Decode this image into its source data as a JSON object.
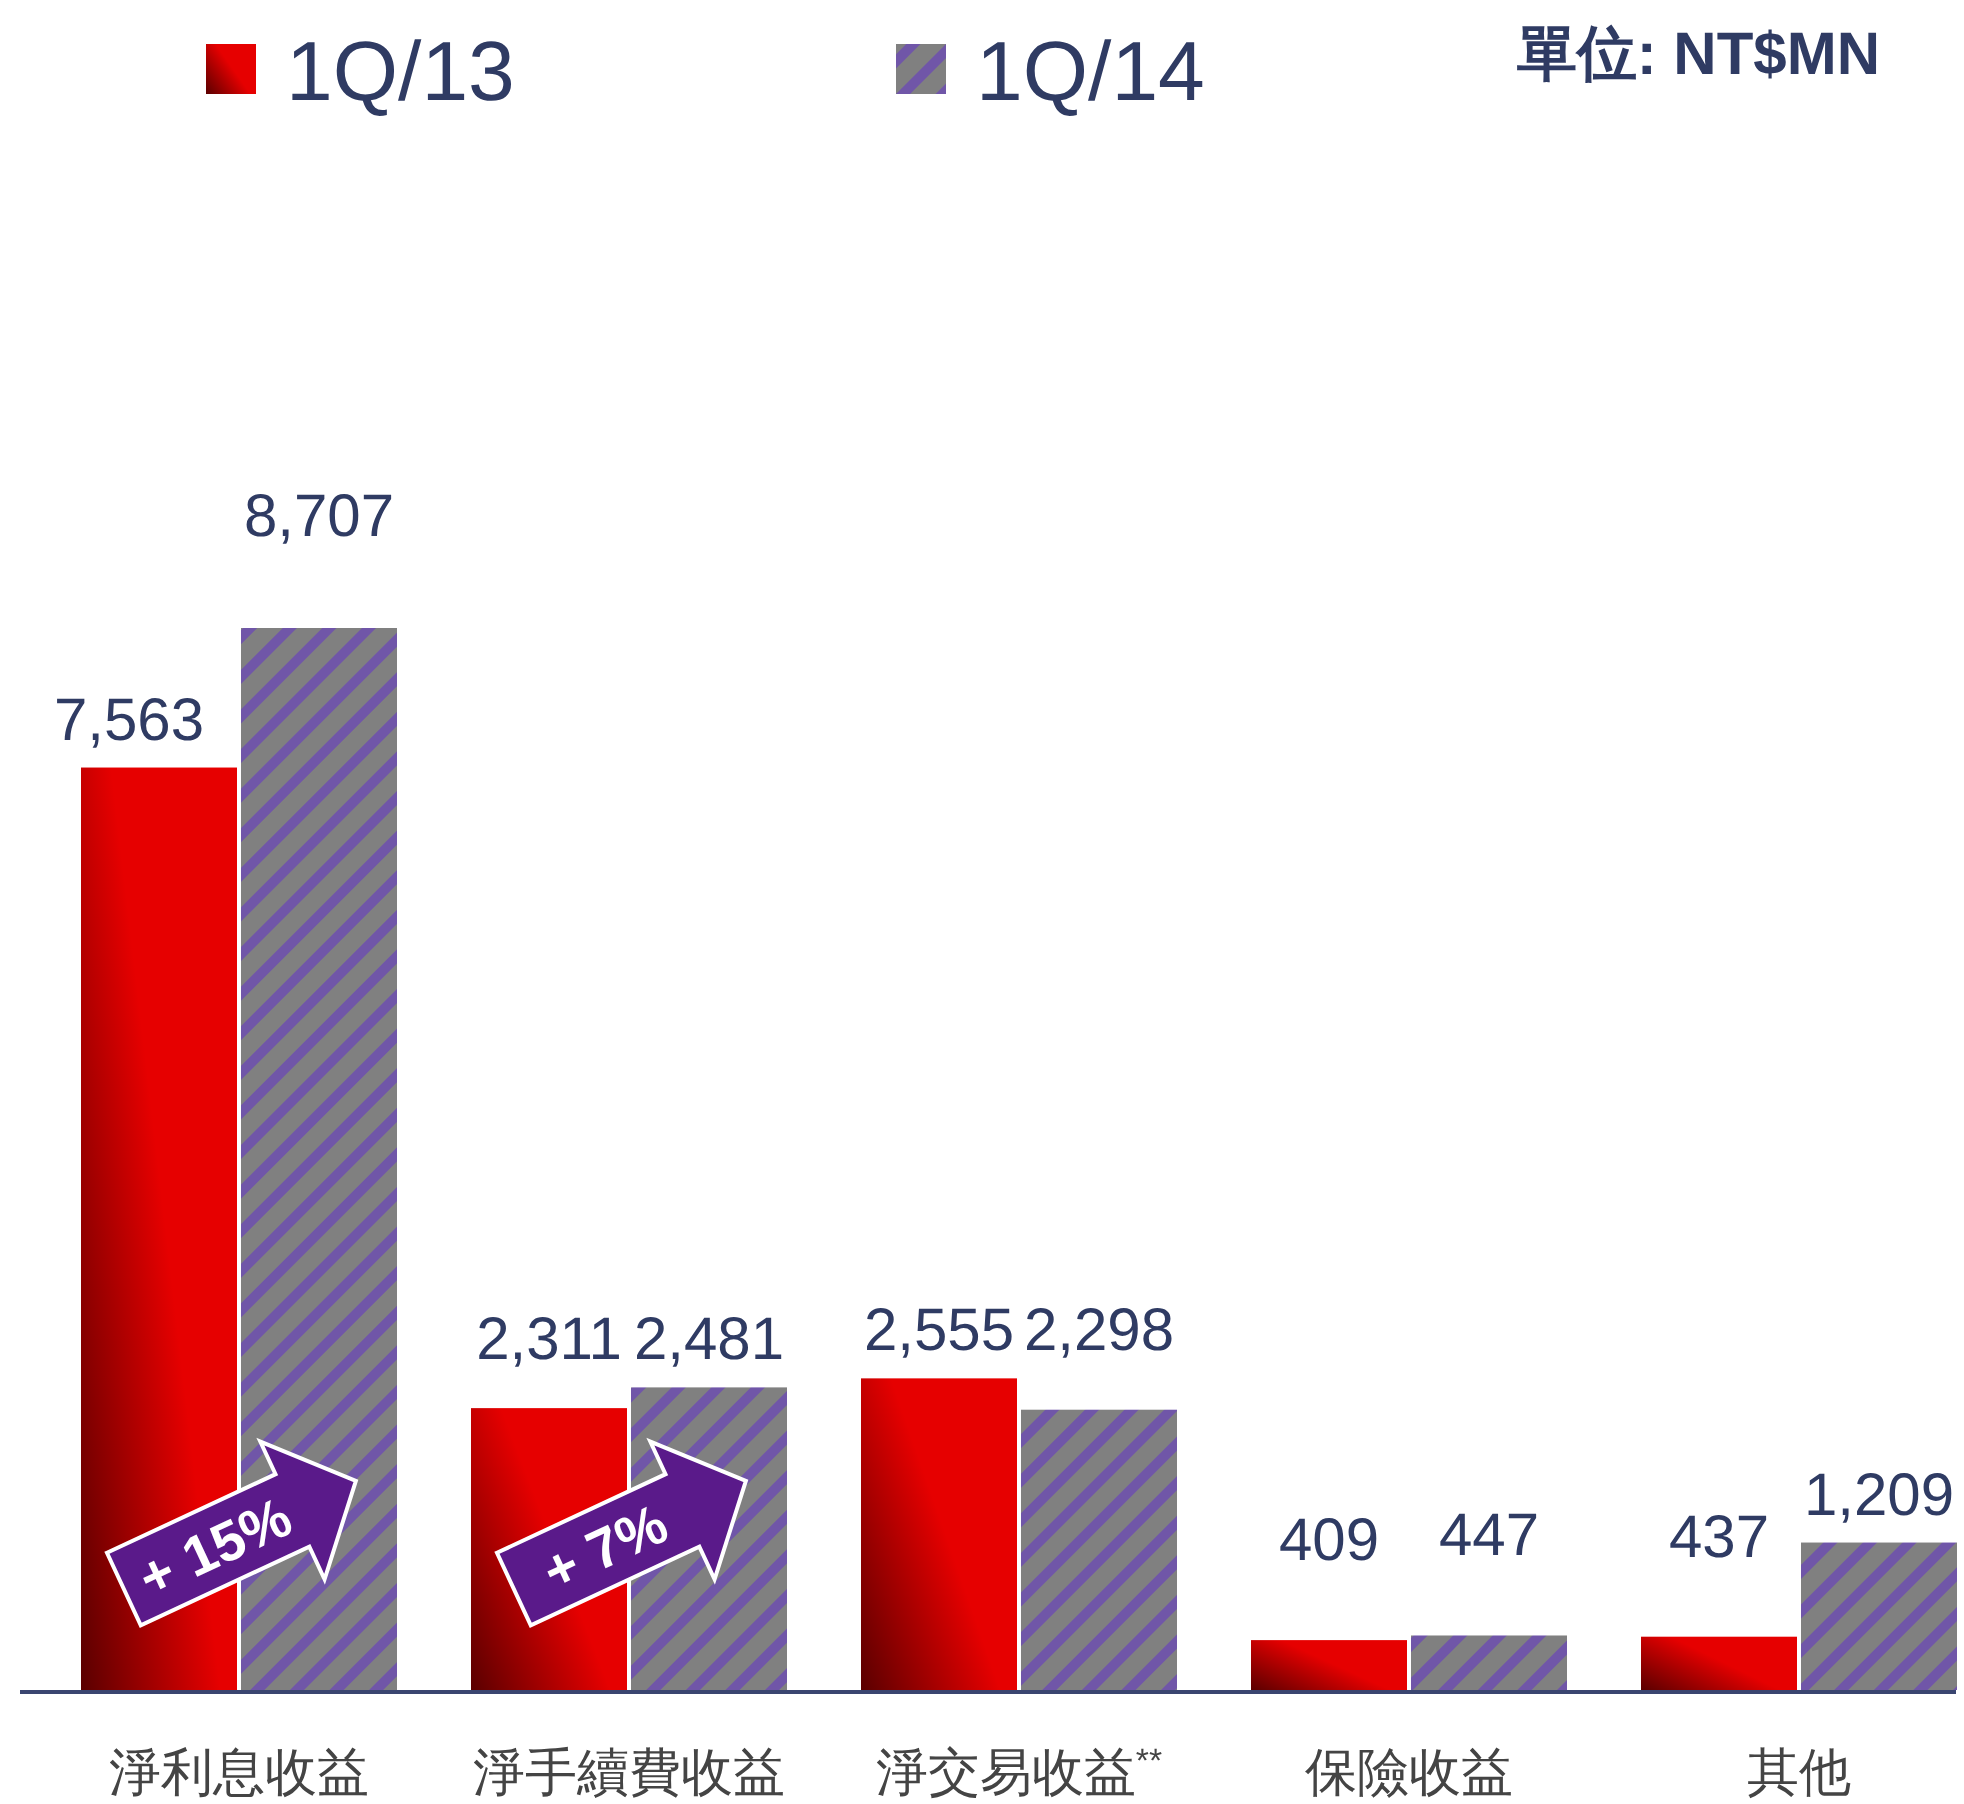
{
  "chart_data": {
    "type": "bar",
    "subtitle": "單位: NT$MN",
    "categories": [
      "淨利息收益",
      "淨手續費收益",
      "淨交易收益$^{**}$",
      "保險收益",
      "其他"
    ],
    "series": [
      {
        "name": "1Q/13",
        "color": "#e60000",
        "values": [
          7563,
          2311,
          2555,
          409,
          437
        ],
        "value_labels": [
          "7,563",
          "2,311",
          "2,555",
          "409",
          "437"
        ]
      },
      {
        "name": "1Q/14",
        "color": "#808080",
        "values": [
          8707,
          2481,
          2298,
          447,
          1209
        ],
        "value_labels": [
          "8,707",
          "2,481",
          "2,298",
          "447",
          "1,209"
        ]
      }
    ],
    "data_labels": true,
    "legend": "top",
    "annotations": [
      "+ 15%",
      "+ 7%"
    ]
  }
}
